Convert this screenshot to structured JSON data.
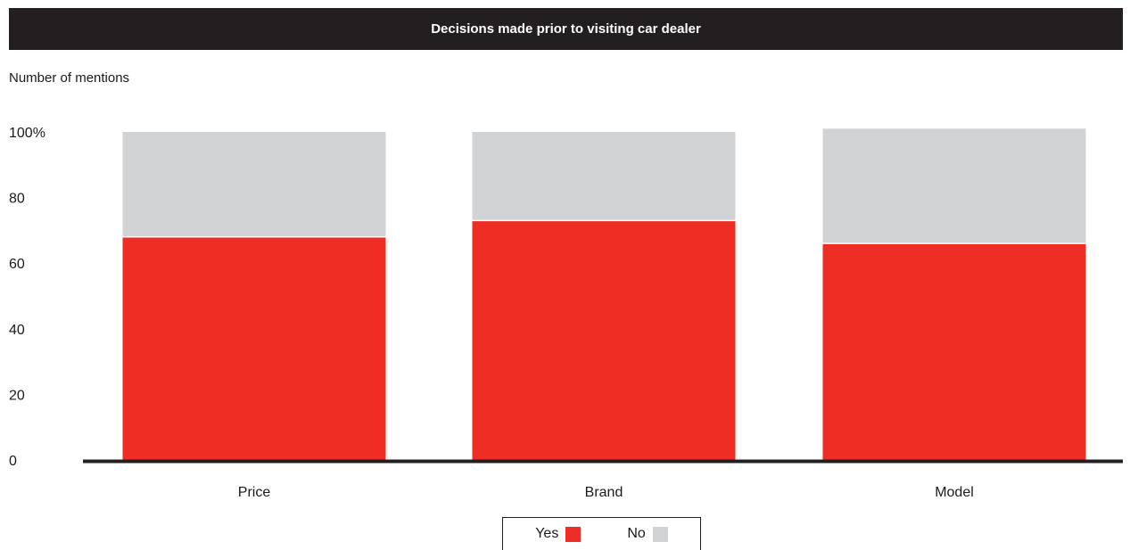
{
  "colors": {
    "yes": "#ee2e24",
    "no": "#d1d3d4",
    "axis": "#231f20",
    "title_bg": "#231f20"
  },
  "chart_data": {
    "type": "bar",
    "stacked": true,
    "title": "Decisions made prior to visiting car dealer",
    "ylabel": "Number of mentions",
    "xlabel": "",
    "categories": [
      "Price",
      "Brand",
      "Model"
    ],
    "series": [
      {
        "name": "Yes",
        "values": [
          68,
          73,
          66
        ]
      },
      {
        "name": "No",
        "values": [
          32,
          27,
          35
        ]
      }
    ],
    "ylim": [
      0,
      100
    ],
    "yticks": [
      0,
      20,
      40,
      60,
      80,
      100
    ],
    "ytick_labels": [
      "0",
      "20",
      "40",
      "60",
      "80",
      "100%"
    ],
    "grid": false,
    "legend_position": "bottom-center"
  }
}
